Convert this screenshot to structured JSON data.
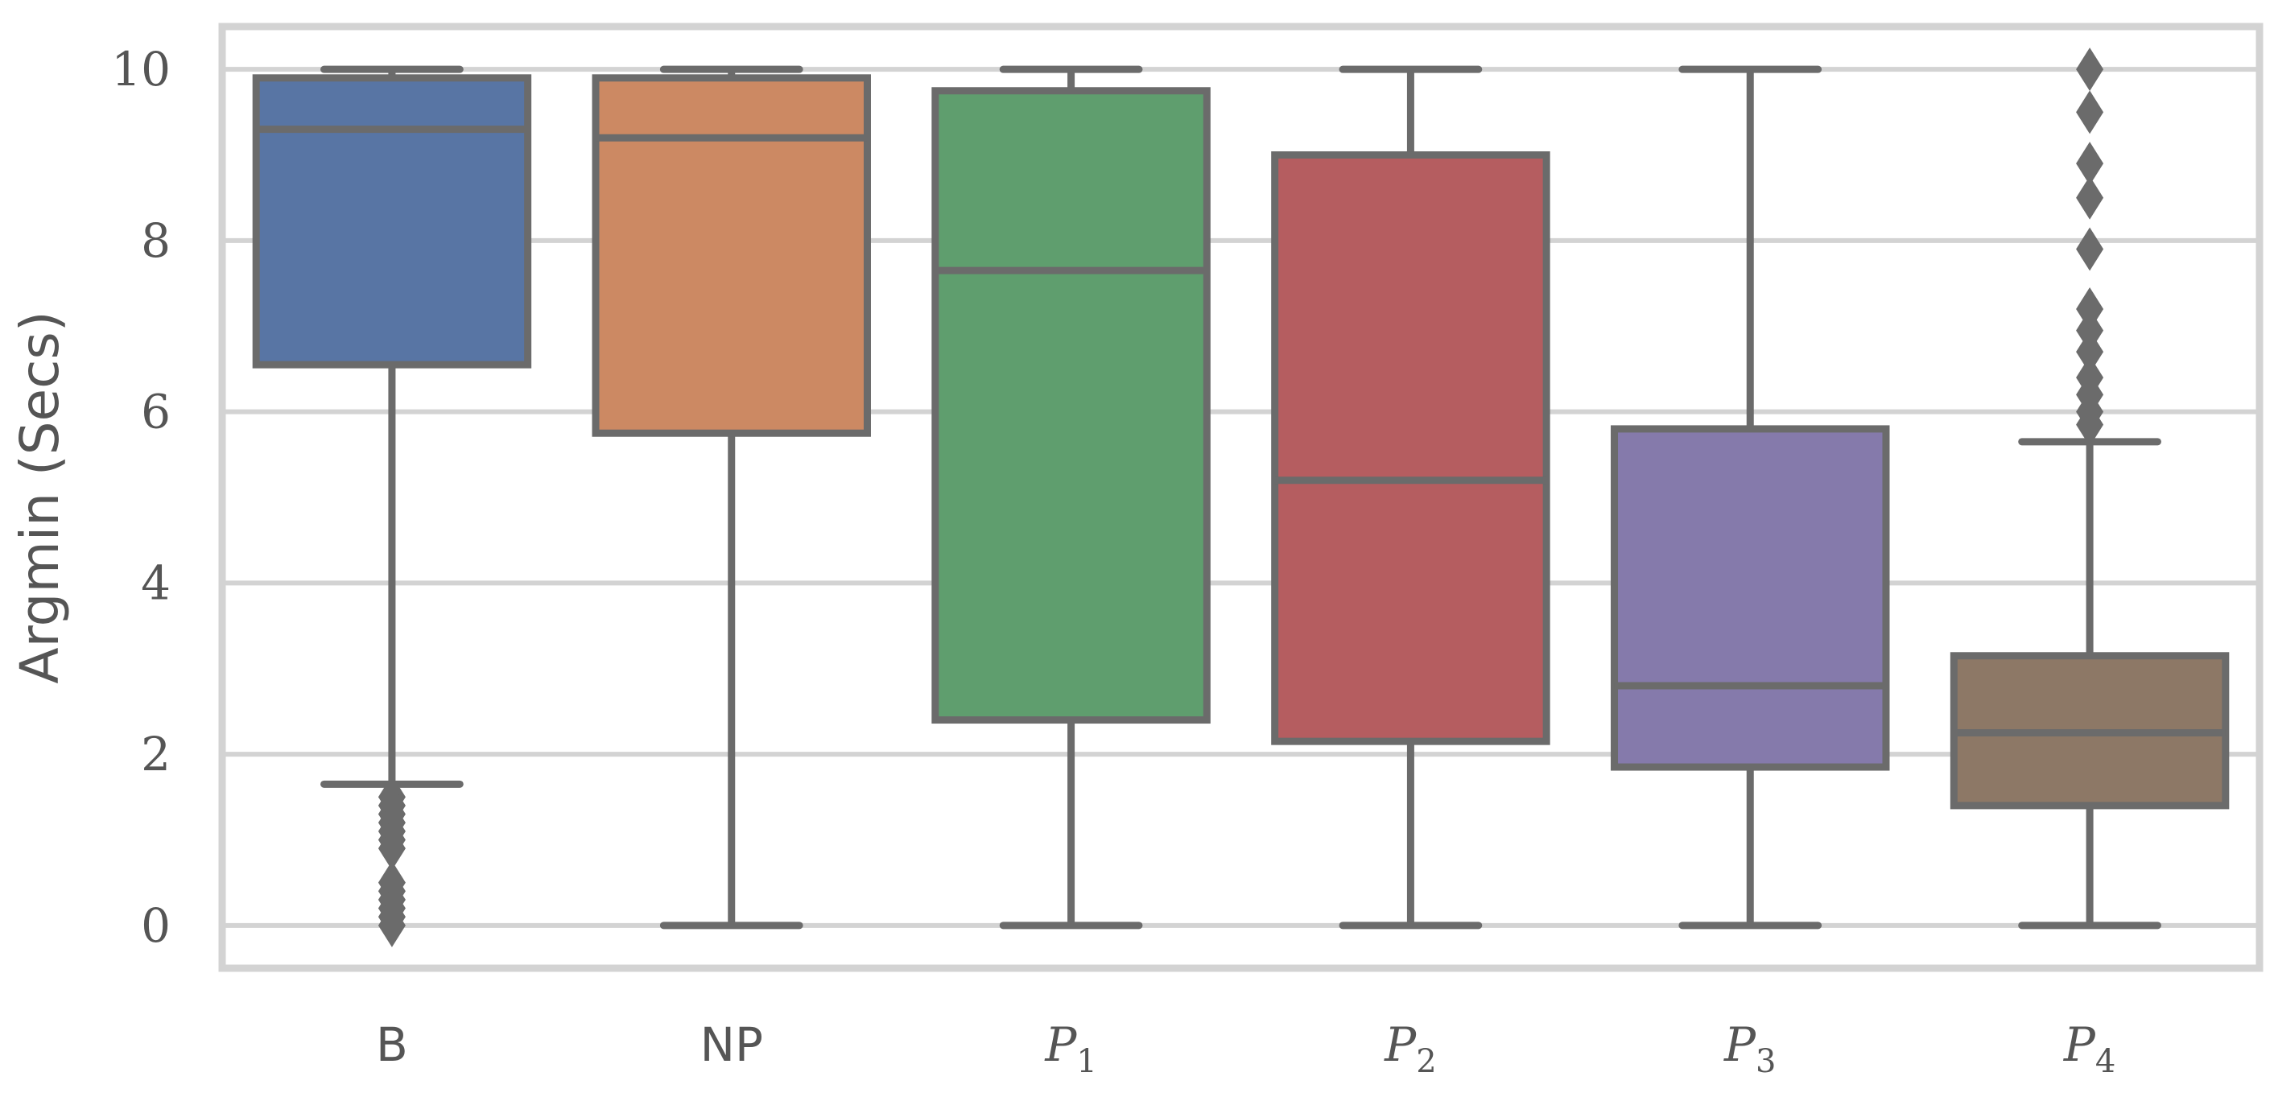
{
  "chart_data": {
    "type": "box",
    "ylabel": "Argmin (Secs)",
    "xlabel": "",
    "ylim": [
      -0.5,
      10.5
    ],
    "yticks": [
      0,
      2,
      4,
      6,
      8,
      10
    ],
    "grid": "horizontal",
    "categories": [
      {
        "label": "B",
        "base": "B",
        "sub": ""
      },
      {
        "label": "NP",
        "base": "NP",
        "sub": ""
      },
      {
        "label": "P1",
        "base": "P",
        "sub": "1"
      },
      {
        "label": "P2",
        "base": "P",
        "sub": "2"
      },
      {
        "label": "P3",
        "base": "P",
        "sub": "3"
      },
      {
        "label": "P4",
        "base": "P",
        "sub": "4"
      }
    ],
    "boxes": [
      {
        "category": "B",
        "color": "#5875a4",
        "whisker_low": 1.65,
        "q1": 6.55,
        "median": 9.3,
        "q3": 9.9,
        "whisker_high": 10.0,
        "outliers": [
          1.5,
          1.4,
          1.3,
          1.2,
          1.1,
          1.0,
          0.9,
          0.5,
          0.4,
          0.3,
          0.2,
          0.1,
          0.0
        ]
      },
      {
        "category": "NP",
        "color": "#cc8963",
        "whisker_low": 0.0,
        "q1": 5.75,
        "median": 9.2,
        "q3": 9.9,
        "whisker_high": 10.0,
        "outliers": []
      },
      {
        "category": "P1",
        "color": "#5f9e6e",
        "whisker_low": 0.0,
        "q1": 2.4,
        "median": 7.65,
        "q3": 9.75,
        "whisker_high": 10.0,
        "outliers": []
      },
      {
        "category": "P2",
        "color": "#b55d60",
        "whisker_low": 0.0,
        "q1": 2.15,
        "median": 5.2,
        "q3": 9.0,
        "whisker_high": 10.0,
        "outliers": []
      },
      {
        "category": "P3",
        "color": "#857aab",
        "whisker_low": 0.0,
        "q1": 1.85,
        "median": 2.8,
        "q3": 5.8,
        "whisker_high": 10.0,
        "outliers": []
      },
      {
        "category": "P4",
        "color": "#8d7866",
        "whisker_low": 0.0,
        "q1": 1.4,
        "median": 2.25,
        "q3": 3.15,
        "whisker_high": 5.65,
        "outliers": [
          5.85,
          6.0,
          6.2,
          6.4,
          6.7,
          6.95,
          7.2,
          7.9,
          8.5,
          8.9,
          9.5,
          10.0
        ]
      }
    ],
    "line_color": "#6b6b6b",
    "grid_color": "#d3d3d3"
  }
}
